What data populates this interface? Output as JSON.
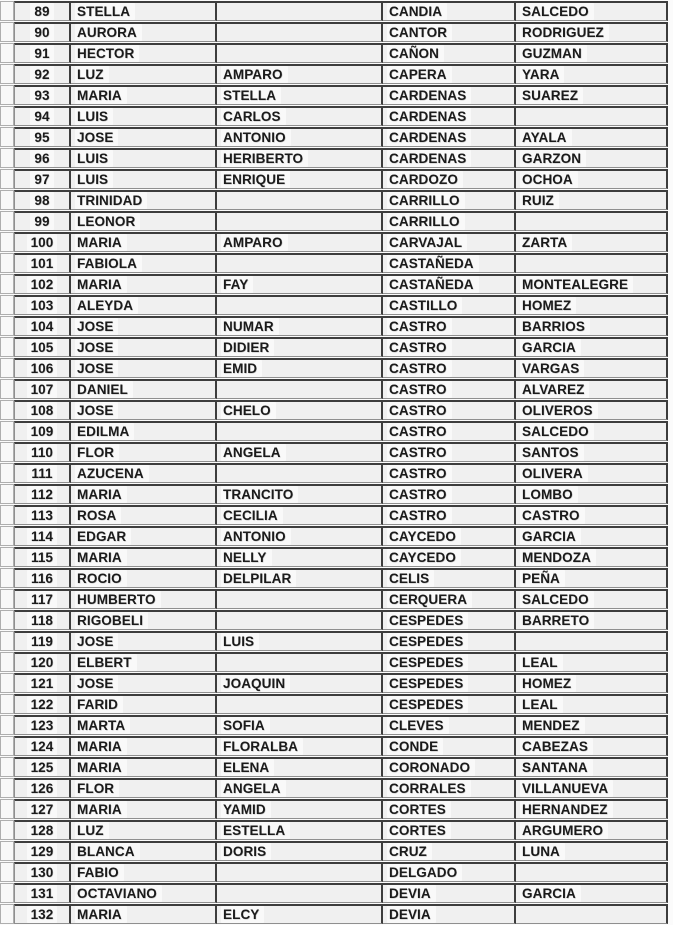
{
  "colors": {
    "ink": "#1b1b1b",
    "paper": "#fbfbfb",
    "cell_fill": "#f0f0f0",
    "border_dark": "#3d3d3d",
    "border_mid": "#8f8f8f"
  },
  "table": {
    "columns": [
      "row-number",
      "first-name",
      "middle-name",
      "surname-1",
      "surname-2"
    ],
    "rows": [
      {
        "n": "89",
        "first": "STELLA",
        "middle": "",
        "sur1": "CANDIA",
        "sur2": "SALCEDO"
      },
      {
        "n": "90",
        "first": "AURORA",
        "middle": "",
        "sur1": "CANTOR",
        "sur2": "RODRIGUEZ"
      },
      {
        "n": "91",
        "first": "HECTOR",
        "middle": "",
        "sur1": "CAÑON",
        "sur2": "GUZMAN"
      },
      {
        "n": "92",
        "first": "LUZ",
        "middle": "AMPARO",
        "sur1": "CAPERA",
        "sur2": "YARA"
      },
      {
        "n": "93",
        "first": "MARIA",
        "middle": "STELLA",
        "sur1": "CARDENAS",
        "sur2": "SUAREZ"
      },
      {
        "n": "94",
        "first": "LUIS",
        "middle": "CARLOS",
        "sur1": "CARDENAS",
        "sur2": ""
      },
      {
        "n": "95",
        "first": "JOSE",
        "middle": "ANTONIO",
        "sur1": "CARDENAS",
        "sur2": "AYALA"
      },
      {
        "n": "96",
        "first": "LUIS",
        "middle": "HERIBERTO",
        "sur1": "CARDENAS",
        "sur2": "GARZON"
      },
      {
        "n": "97",
        "first": "LUIS",
        "middle": "ENRIQUE",
        "sur1": "CARDOZO",
        "sur2": "OCHOA"
      },
      {
        "n": "98",
        "first": "TRINIDAD",
        "middle": "",
        "sur1": "CARRILLO",
        "sur2": "RUIZ"
      },
      {
        "n": "99",
        "first": "LEONOR",
        "middle": "",
        "sur1": "CARRILLO",
        "sur2": ""
      },
      {
        "n": "100",
        "first": "MARIA",
        "middle": "AMPARO",
        "sur1": "CARVAJAL",
        "sur2": "ZARTA"
      },
      {
        "n": "101",
        "first": "FABIOLA",
        "middle": "",
        "sur1": "CASTAÑEDA",
        "sur2": ""
      },
      {
        "n": "102",
        "first": "MARIA",
        "middle": "FAY",
        "sur1": "CASTAÑEDA",
        "sur2": "MONTEALEGRE"
      },
      {
        "n": "103",
        "first": "ALEYDA",
        "middle": "",
        "sur1": "CASTILLO",
        "sur2": "HOMEZ"
      },
      {
        "n": "104",
        "first": "JOSE",
        "middle": "NUMAR",
        "sur1": "CASTRO",
        "sur2": "BARRIOS"
      },
      {
        "n": "105",
        "first": "JOSE",
        "middle": "DIDIER",
        "sur1": "CASTRO",
        "sur2": "GARCIA"
      },
      {
        "n": "106",
        "first": "JOSE",
        "middle": "EMID",
        "sur1": "CASTRO",
        "sur2": "VARGAS"
      },
      {
        "n": "107",
        "first": "DANIEL",
        "middle": "",
        "sur1": "CASTRO",
        "sur2": "ALVAREZ"
      },
      {
        "n": "108",
        "first": "JOSE",
        "middle": "CHELO",
        "sur1": "CASTRO",
        "sur2": "OLIVEROS"
      },
      {
        "n": "109",
        "first": "EDILMA",
        "middle": "",
        "sur1": "CASTRO",
        "sur2": "SALCEDO"
      },
      {
        "n": "110",
        "first": "FLOR",
        "middle": "ANGELA",
        "sur1": "CASTRO",
        "sur2": "SANTOS"
      },
      {
        "n": "111",
        "first": "AZUCENA",
        "middle": "",
        "sur1": "CASTRO",
        "sur2": "OLIVERA"
      },
      {
        "n": "112",
        "first": "MARIA",
        "middle": "TRANCITO",
        "sur1": "CASTRO",
        "sur2": "LOMBO"
      },
      {
        "n": "113",
        "first": "ROSA",
        "middle": "CECILIA",
        "sur1": "CASTRO",
        "sur2": "CASTRO"
      },
      {
        "n": "114",
        "first": "EDGAR",
        "middle": "ANTONIO",
        "sur1": "CAYCEDO",
        "sur2": "GARCIA"
      },
      {
        "n": "115",
        "first": "MARIA",
        "middle": "NELLY",
        "sur1": "CAYCEDO",
        "sur2": "MENDOZA"
      },
      {
        "n": "116",
        "first": "ROCIO",
        "middle": "DELPILAR",
        "sur1": "CELIS",
        "sur2": "PEÑA"
      },
      {
        "n": "117",
        "first": "HUMBERTO",
        "middle": "",
        "sur1": "CERQUERA",
        "sur2": "SALCEDO"
      },
      {
        "n": "118",
        "first": "RIGOBELI",
        "middle": "",
        "sur1": "CESPEDES",
        "sur2": "BARRETO"
      },
      {
        "n": "119",
        "first": "JOSE",
        "middle": "LUIS",
        "sur1": "CESPEDES",
        "sur2": ""
      },
      {
        "n": "120",
        "first": "ELBERT",
        "middle": "",
        "sur1": "CESPEDES",
        "sur2": "LEAL"
      },
      {
        "n": "121",
        "first": "JOSE",
        "middle": "JOAQUIN",
        "sur1": "CESPEDES",
        "sur2": "HOMEZ"
      },
      {
        "n": "122",
        "first": "FARID",
        "middle": "",
        "sur1": "CESPEDES",
        "sur2": "LEAL"
      },
      {
        "n": "123",
        "first": "MARTA",
        "middle": "SOFIA",
        "sur1": "CLEVES",
        "sur2": "MENDEZ"
      },
      {
        "n": "124",
        "first": "MARIA",
        "middle": "FLORALBA",
        "sur1": "CONDE",
        "sur2": "CABEZAS"
      },
      {
        "n": "125",
        "first": "MARIA",
        "middle": "ELENA",
        "sur1": "CORONADO",
        "sur2": "SANTANA"
      },
      {
        "n": "126",
        "first": "FLOR",
        "middle": "ANGELA",
        "sur1": "CORRALES",
        "sur2": "VILLANUEVA"
      },
      {
        "n": "127",
        "first": "MARIA",
        "middle": "YAMID",
        "sur1": "CORTES",
        "sur2": "HERNANDEZ"
      },
      {
        "n": "128",
        "first": "LUZ",
        "middle": "ESTELLA",
        "sur1": "CORTES",
        "sur2": "ARGUMERO"
      },
      {
        "n": "129",
        "first": "BLANCA",
        "middle": "DORIS",
        "sur1": "CRUZ",
        "sur2": "LUNA"
      },
      {
        "n": "130",
        "first": "FABIO",
        "middle": "",
        "sur1": "DELGADO",
        "sur2": ""
      },
      {
        "n": "131",
        "first": "OCTAVIANO",
        "middle": "",
        "sur1": "DEVIA",
        "sur2": "GARCIA"
      },
      {
        "n": "132",
        "first": "MARIA",
        "middle": "ELCY",
        "sur1": "DEVIA",
        "sur2": ""
      }
    ]
  }
}
